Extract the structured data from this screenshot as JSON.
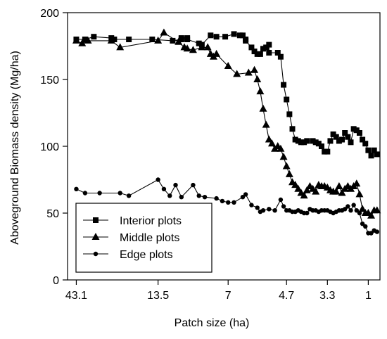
{
  "chart_data": {
    "type": "line",
    "xlabel": "Patch size (ha)",
    "ylabel": "Aboveground Biomass density (Mg/ha)",
    "x_ticks": [
      "43.1",
      "13.5",
      "7",
      "4.7",
      "3.3",
      "1"
    ],
    "y_ticks": [
      0,
      50,
      100,
      150,
      200
    ],
    "ylim": [
      0,
      200
    ],
    "x_axis_note": "patch rank position 0-100 (largest to smallest patch), tick labels show patch size",
    "xlim": [
      -3,
      104
    ],
    "x_tick_positions": [
      0,
      28,
      52,
      72,
      86,
      100
    ],
    "legend_position": "bottom-left",
    "series": [
      {
        "name": "Interior plots",
        "marker": "square",
        "points": [
          [
            0,
            180
          ],
          [
            3,
            180
          ],
          [
            6,
            182
          ],
          [
            12,
            181
          ],
          [
            13,
            180
          ],
          [
            18,
            180
          ],
          [
            26,
            180
          ],
          [
            33,
            179
          ],
          [
            36,
            180
          ],
          [
            36,
            181
          ],
          [
            38,
            181
          ],
          [
            38,
            180
          ],
          [
            42,
            177
          ],
          [
            43,
            176
          ],
          [
            46,
            183
          ],
          [
            48,
            182
          ],
          [
            51,
            182
          ],
          [
            54,
            184
          ],
          [
            56,
            183
          ],
          [
            57,
            183
          ],
          [
            58,
            180
          ],
          [
            58,
            179
          ],
          [
            60,
            174
          ],
          [
            61,
            171
          ],
          [
            62,
            169
          ],
          [
            63,
            169
          ],
          [
            64,
            173
          ],
          [
            65,
            174
          ],
          [
            66,
            176
          ],
          [
            66,
            170
          ],
          [
            69,
            170
          ],
          [
            70,
            167
          ],
          [
            71,
            146
          ],
          [
            72,
            135
          ],
          [
            73,
            124
          ],
          [
            74,
            113
          ],
          [
            75,
            105
          ],
          [
            76,
            104
          ],
          [
            77,
            103
          ],
          [
            78,
            103
          ],
          [
            79,
            104
          ],
          [
            81,
            104
          ],
          [
            82,
            103
          ],
          [
            83,
            102
          ],
          [
            84,
            100
          ],
          [
            85,
            96
          ],
          [
            86,
            96
          ],
          [
            87,
            104
          ],
          [
            88,
            109
          ],
          [
            89,
            107
          ],
          [
            90,
            104
          ],
          [
            91,
            105
          ],
          [
            92,
            110
          ],
          [
            93,
            107
          ],
          [
            94,
            103
          ],
          [
            95,
            113
          ],
          [
            96,
            112
          ],
          [
            97,
            110
          ],
          [
            98,
            105
          ],
          [
            99,
            102
          ],
          [
            100,
            97
          ],
          [
            101,
            93
          ],
          [
            102,
            97
          ],
          [
            103,
            94
          ]
        ]
      },
      {
        "name": "Middle plots",
        "marker": "triangle",
        "points": [
          [
            0,
            179
          ],
          [
            2,
            177
          ],
          [
            4,
            179
          ],
          [
            12,
            179
          ],
          [
            15,
            174
          ],
          [
            28,
            179
          ],
          [
            30,
            185
          ],
          [
            35,
            178
          ],
          [
            37,
            174
          ],
          [
            38,
            173
          ],
          [
            40,
            172
          ],
          [
            43,
            174
          ],
          [
            45,
            174
          ],
          [
            46,
            169
          ],
          [
            47,
            167
          ],
          [
            48,
            169
          ],
          [
            52,
            160
          ],
          [
            55,
            154
          ],
          [
            59,
            155
          ],
          [
            61,
            157
          ],
          [
            62,
            150
          ],
          [
            63,
            141
          ],
          [
            64,
            128
          ],
          [
            65,
            116
          ],
          [
            66,
            105
          ],
          [
            67,
            102
          ],
          [
            68,
            98
          ],
          [
            69,
            100
          ],
          [
            70,
            98
          ],
          [
            71,
            92
          ],
          [
            72,
            85
          ],
          [
            73,
            79
          ],
          [
            74,
            73
          ],
          [
            75,
            71
          ],
          [
            76,
            68
          ],
          [
            77,
            65
          ],
          [
            78,
            63
          ],
          [
            79,
            67
          ],
          [
            80,
            70
          ],
          [
            81,
            68
          ],
          [
            82,
            66
          ],
          [
            83,
            71
          ],
          [
            84,
            70
          ],
          [
            85,
            70
          ],
          [
            86,
            69
          ],
          [
            87,
            67
          ],
          [
            88,
            66
          ],
          [
            89,
            66
          ],
          [
            90,
            70
          ],
          [
            91,
            65
          ],
          [
            92,
            68
          ],
          [
            93,
            70
          ],
          [
            94,
            68
          ],
          [
            95,
            70
          ],
          [
            96,
            72
          ],
          [
            97,
            64
          ],
          [
            98,
            53
          ],
          [
            99,
            50
          ],
          [
            100,
            50
          ],
          [
            101,
            48
          ],
          [
            102,
            52
          ],
          [
            103,
            52
          ]
        ]
      },
      {
        "name": "Edge plots",
        "marker": "circle",
        "points": [
          [
            0,
            68
          ],
          [
            3,
            65
          ],
          [
            8,
            65
          ],
          [
            15,
            65
          ],
          [
            18,
            63
          ],
          [
            28,
            75
          ],
          [
            30,
            68
          ],
          [
            32,
            63
          ],
          [
            34,
            71
          ],
          [
            36,
            62
          ],
          [
            40,
            71
          ],
          [
            42,
            63
          ],
          [
            44,
            62
          ],
          [
            48,
            61
          ],
          [
            50,
            59
          ],
          [
            52,
            58
          ],
          [
            54,
            58
          ],
          [
            57,
            62
          ],
          [
            58,
            64
          ],
          [
            60,
            56
          ],
          [
            62,
            54
          ],
          [
            63,
            51
          ],
          [
            64,
            52
          ],
          [
            66,
            53
          ],
          [
            68,
            52
          ],
          [
            70,
            60
          ],
          [
            71,
            55
          ],
          [
            72,
            52
          ],
          [
            73,
            52
          ],
          [
            74,
            51
          ],
          [
            75,
            51
          ],
          [
            76,
            52
          ],
          [
            77,
            51
          ],
          [
            78,
            50
          ],
          [
            79,
            50
          ],
          [
            80,
            53
          ],
          [
            81,
            52
          ],
          [
            82,
            52
          ],
          [
            83,
            51
          ],
          [
            84,
            52
          ],
          [
            85,
            52
          ],
          [
            86,
            52
          ],
          [
            87,
            51
          ],
          [
            88,
            50
          ],
          [
            89,
            51
          ],
          [
            90,
            52
          ],
          [
            91,
            52
          ],
          [
            92,
            53
          ],
          [
            93,
            55
          ],
          [
            94,
            52
          ],
          [
            95,
            56
          ],
          [
            96,
            52
          ],
          [
            97,
            50
          ],
          [
            98,
            42
          ],
          [
            99,
            40
          ],
          [
            100,
            35
          ],
          [
            101,
            35
          ],
          [
            102,
            37
          ],
          [
            103,
            36
          ]
        ]
      }
    ]
  }
}
